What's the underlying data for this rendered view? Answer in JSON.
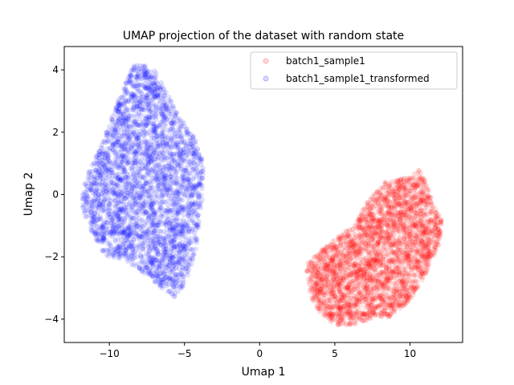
{
  "chart_data": {
    "type": "scatter",
    "title": "UMAP projection of the dataset with random state",
    "xlabel": "Umap 1",
    "ylabel": "Umap 2",
    "xlim": [
      -13.0,
      13.5
    ],
    "ylim": [
      -4.75,
      4.75
    ],
    "xticks": [
      -10,
      -5,
      0,
      5,
      10
    ],
    "yticks": [
      -4,
      -2,
      0,
      2,
      4
    ],
    "xtick_labels": [
      "−10",
      "−5",
      "0",
      "5",
      "10"
    ],
    "ytick_labels": [
      "−4",
      "−2",
      "0",
      "2",
      "4"
    ],
    "legend_position": "top-right",
    "point_alpha": 0.12,
    "series": [
      {
        "name": "batch1_sample1",
        "color": "#ff0000",
        "outline": [
          [
            3.2,
            -2.2
          ],
          [
            4.0,
            -1.8
          ],
          [
            5.0,
            -1.4
          ],
          [
            6.3,
            -1.0
          ],
          [
            7.2,
            -0.2
          ],
          [
            8.3,
            0.4
          ],
          [
            9.5,
            0.5
          ],
          [
            10.6,
            0.8
          ],
          [
            11.2,
            0.3
          ],
          [
            11.5,
            -0.3
          ],
          [
            12.1,
            -0.8
          ],
          [
            12.0,
            -1.6
          ],
          [
            11.0,
            -2.6
          ],
          [
            10.0,
            -3.4
          ],
          [
            8.5,
            -4.0
          ],
          [
            7.8,
            -3.9
          ],
          [
            6.8,
            -4.1
          ],
          [
            6.0,
            -4.2
          ],
          [
            5.0,
            -4.2
          ],
          [
            4.0,
            -3.8
          ],
          [
            3.4,
            -3.3
          ],
          [
            3.1,
            -2.6
          ]
        ]
      },
      {
        "name": "batch1_sample1_transformed",
        "color": "#0000ff",
        "outline": [
          [
            -8.2,
            4.25
          ],
          [
            -7.0,
            4.0
          ],
          [
            -6.2,
            3.3
          ],
          [
            -5.5,
            2.6
          ],
          [
            -4.3,
            1.8
          ],
          [
            -3.8,
            1.1
          ],
          [
            -3.7,
            0.2
          ],
          [
            -4.0,
            -0.8
          ],
          [
            -4.3,
            -2.0
          ],
          [
            -5.0,
            -2.9
          ],
          [
            -5.7,
            -3.3
          ],
          [
            -6.5,
            -3.0
          ],
          [
            -7.8,
            -2.5
          ],
          [
            -9.0,
            -2.1
          ],
          [
            -10.2,
            -2.0
          ],
          [
            -11.1,
            -1.3
          ],
          [
            -11.8,
            -0.5
          ],
          [
            -11.8,
            0.2
          ],
          [
            -11.3,
            0.8
          ],
          [
            -10.7,
            1.4
          ],
          [
            -9.9,
            2.4
          ],
          [
            -9.2,
            3.3
          ],
          [
            -8.8,
            3.8
          ]
        ]
      }
    ]
  }
}
